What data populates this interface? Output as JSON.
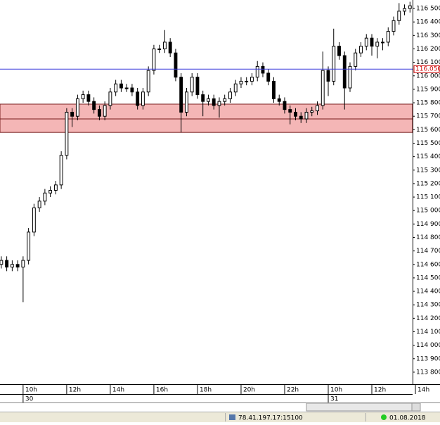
{
  "chart_data": {
    "type": "candlestick",
    "x": [
      9,
      9.25,
      9.5,
      9.75,
      10,
      10.25,
      10.5,
      10.75,
      11,
      11.25,
      11.5,
      11.75,
      12,
      12.25,
      12.5,
      12.75,
      13,
      13.25,
      13.5,
      13.75,
      14,
      14.25,
      14.5,
      14.75,
      15,
      15.25,
      15.5,
      15.75,
      16,
      16.25,
      16.5,
      16.75,
      17,
      17.25,
      17.5,
      17.75,
      18,
      18.25,
      18.5,
      18.75,
      19,
      19.25,
      19.5,
      19.75,
      20,
      20.25,
      20.5,
      20.75,
      21,
      21.25,
      21.5,
      21.75,
      22,
      22.25,
      22.5,
      22.75,
      23,
      23.25,
      23.5,
      23.75,
      24,
      24.25,
      24.5,
      24.75,
      25,
      25.25,
      25.5,
      25.75,
      26,
      26.25,
      26.5,
      26.75,
      27,
      27.25,
      27.5,
      27.75
    ],
    "open": [
      114600,
      114630,
      114580,
      114600,
      114580,
      114630,
      114840,
      115020,
      115070,
      115130,
      115150,
      115190,
      115410,
      115730,
      115700,
      115830,
      115860,
      115810,
      115750,
      115700,
      115780,
      115880,
      115940,
      115910,
      115910,
      115880,
      115780,
      115880,
      116040,
      116200,
      116200,
      116250,
      116170,
      115990,
      115730,
      115880,
      115990,
      115860,
      115810,
      115830,
      115780,
      115810,
      115830,
      115880,
      115940,
      115960,
      115960,
      115990,
      116070,
      116020,
      115960,
      115830,
      115810,
      115750,
      115730,
      115700,
      115680,
      115730,
      115740,
      115780,
      116040,
      115960,
      116220,
      116150,
      115910,
      116070,
      116170,
      116220,
      116280,
      116220,
      116250,
      116250,
      116330,
      116410,
      116480,
      116500
    ],
    "high": [
      114660,
      114660,
      114630,
      114630,
      114660,
      114870,
      115050,
      115100,
      115160,
      115180,
      115220,
      115440,
      115760,
      115760,
      115860,
      115890,
      115890,
      115840,
      115780,
      115810,
      115910,
      115970,
      115970,
      115940,
      115940,
      115910,
      115910,
      116070,
      116230,
      116230,
      116340,
      116280,
      116200,
      116020,
      115910,
      116020,
      116020,
      115890,
      115860,
      115860,
      115840,
      115860,
      115910,
      115970,
      115990,
      115990,
      116020,
      116110,
      116100,
      116050,
      115990,
      115860,
      115840,
      115780,
      115760,
      115730,
      115760,
      115770,
      115810,
      116180,
      116070,
      116350,
      116250,
      116180,
      116100,
      116200,
      116250,
      116310,
      116310,
      116280,
      116280,
      116360,
      116440,
      116540,
      116530,
      116550
    ],
    "low": [
      114570,
      114550,
      114550,
      114550,
      114320,
      114600,
      114810,
      114990,
      115040,
      115100,
      115120,
      115160,
      115380,
      115620,
      115670,
      115800,
      115780,
      115720,
      115670,
      115670,
      115750,
      115850,
      115880,
      115880,
      115850,
      115750,
      115750,
      115850,
      116010,
      116170,
      116170,
      116140,
      115960,
      115580,
      115700,
      115850,
      115830,
      115700,
      115780,
      115750,
      115690,
      115780,
      115800,
      115850,
      115910,
      115930,
      115930,
      115960,
      115990,
      115930,
      115800,
      115780,
      115720,
      115640,
      115670,
      115650,
      115650,
      115700,
      115710,
      115750,
      115850,
      115930,
      116120,
      115750,
      115880,
      116040,
      116140,
      116190,
      116150,
      116130,
      116190,
      116220,
      116300,
      116380,
      116450,
      116470
    ],
    "close": [
      114630,
      114580,
      114600,
      114580,
      114630,
      114840,
      115020,
      115070,
      115130,
      115150,
      115190,
      115410,
      115730,
      115700,
      115830,
      115860,
      115810,
      115750,
      115700,
      115780,
      115880,
      115940,
      115910,
      115910,
      115880,
      115780,
      115880,
      116040,
      116200,
      116200,
      116250,
      116170,
      115990,
      115730,
      115880,
      115990,
      115860,
      115810,
      115830,
      115780,
      115810,
      115830,
      115880,
      115940,
      115960,
      115960,
      115990,
      116070,
      116020,
      115960,
      115830,
      115810,
      115750,
      115730,
      115700,
      115680,
      115730,
      115740,
      115780,
      116040,
      115960,
      116220,
      116150,
      115910,
      116070,
      116170,
      116220,
      116280,
      116220,
      116250,
      116250,
      116330,
      116410,
      116480,
      116500,
      116520
    ],
    "xlim": [
      8.94,
      27.87
    ],
    "xticks": [
      {
        "value": 10,
        "label": "10h"
      },
      {
        "value": 12,
        "label": "12h"
      },
      {
        "value": 14,
        "label": "14h"
      },
      {
        "value": 16,
        "label": "16h"
      },
      {
        "value": 18,
        "label": "18h"
      },
      {
        "value": 20,
        "label": "20h"
      },
      {
        "value": 22,
        "label": "22h"
      },
      {
        "value": 24,
        "label": "10h"
      },
      {
        "value": 26,
        "label": "12h"
      },
      {
        "value": 28,
        "label": "14h"
      }
    ],
    "day_ticks": [
      {
        "value": 10,
        "label": "30"
      },
      {
        "value": 24,
        "label": "31"
      }
    ],
    "ylim": [
      113716,
      116563
    ],
    "yticks": [
      {
        "value": 113800,
        "label": "113 800"
      },
      {
        "value": 113900,
        "label": "113 900"
      },
      {
        "value": 114000,
        "label": "114 000"
      },
      {
        "value": 114100,
        "label": "114 100"
      },
      {
        "value": 114200,
        "label": "114 200"
      },
      {
        "value": 114300,
        "label": "114 300"
      },
      {
        "value": 114400,
        "label": "114 400"
      },
      {
        "value": 114500,
        "label": "114 500"
      },
      {
        "value": 114600,
        "label": "114 600"
      },
      {
        "value": 114700,
        "label": "114 700"
      },
      {
        "value": 114800,
        "label": "114 800"
      },
      {
        "value": 114900,
        "label": "114 900"
      },
      {
        "value": 115000,
        "label": "115 000"
      },
      {
        "value": 115100,
        "label": "115 100"
      },
      {
        "value": 115200,
        "label": "115 200"
      },
      {
        "value": 115300,
        "label": "115 300"
      },
      {
        "value": 115400,
        "label": "115 400"
      },
      {
        "value": 115500,
        "label": "115 500"
      },
      {
        "value": 115600,
        "label": "115 600"
      },
      {
        "value": 115700,
        "label": "115 700"
      },
      {
        "value": 115800,
        "label": "115 800"
      },
      {
        "value": 115900,
        "label": "115 900"
      },
      {
        "value": 116000,
        "label": "116 000"
      },
      {
        "value": 116100,
        "label": "116 100"
      },
      {
        "value": 116200,
        "label": "116 200"
      },
      {
        "value": 116300,
        "label": "116 300"
      },
      {
        "value": 116400,
        "label": "116 400"
      },
      {
        "value": 116500,
        "label": "116 500"
      }
    ],
    "hline": {
      "value": 116050,
      "label": "116.050",
      "color": "#3b3bdb",
      "label_color": "#cc0000"
    },
    "zones": [
      {
        "from": 115680,
        "to": 115790
      },
      {
        "from": 115580,
        "to": 115680
      }
    ],
    "zone_color": "#f4b6b6",
    "zone_border": "#7a2020",
    "up_color": "#ffffff",
    "down_color": "#000000"
  },
  "status_bar": {
    "address": "78.41.197.17:15100",
    "date": "01.08.2018"
  }
}
